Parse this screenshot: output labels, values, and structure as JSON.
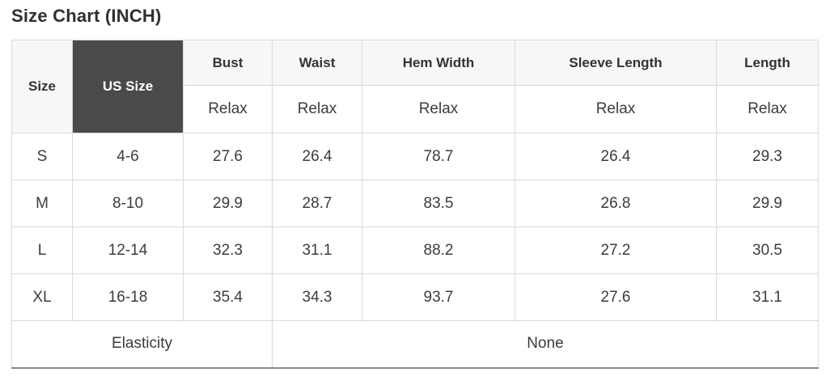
{
  "title": "Size Chart (INCH)",
  "table": {
    "corner_headers": {
      "size": "Size",
      "us_size": "US Size"
    },
    "measure_headers": [
      {
        "label": "Bust",
        "fit": "Relax"
      },
      {
        "label": "Waist",
        "fit": "Relax"
      },
      {
        "label": "Hem Width",
        "fit": "Relax"
      },
      {
        "label": "Sleeve Length",
        "fit": "Relax"
      },
      {
        "label": "Length",
        "fit": "Relax"
      }
    ],
    "rows": [
      {
        "size": "S",
        "us_size": "4-6",
        "values": [
          "27.6",
          "26.4",
          "78.7",
          "26.4",
          "29.3"
        ]
      },
      {
        "size": "M",
        "us_size": "8-10",
        "values": [
          "29.9",
          "28.7",
          "83.5",
          "26.8",
          "29.9"
        ]
      },
      {
        "size": "L",
        "us_size": "12-14",
        "values": [
          "32.3",
          "31.1",
          "88.2",
          "27.2",
          "30.5"
        ]
      },
      {
        "size": "XL",
        "us_size": "16-18",
        "values": [
          "35.4",
          "34.3",
          "93.7",
          "27.6",
          "31.1"
        ]
      }
    ],
    "footer": {
      "label": "Elasticity",
      "value": "None"
    }
  },
  "colors": {
    "dark_header_bg": "#4a4a4a",
    "dark_header_text": "#ffffff",
    "light_header_bg": "#f7f7f7",
    "border": "#d9d9d9",
    "bottom_border": "#8a8a8a",
    "text": "#333333"
  }
}
